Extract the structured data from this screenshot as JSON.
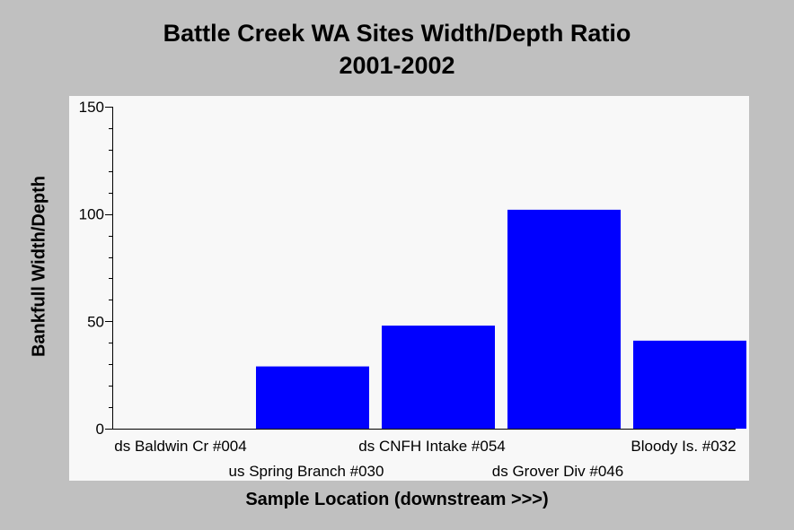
{
  "chart_data": {
    "type": "bar",
    "title_line_1": "Battle Creek WA Sites Width/Depth Ratio",
    "title_line_2": "2001-2002",
    "xlabel": "Sample Location (downstream >>>)",
    "ylabel": "Bankfull Width/Depth",
    "categories": [
      "ds Baldwin Cr #004",
      "us Spring Branch #030",
      "ds CNFH Intake #054",
      "ds Grover Div #046",
      "Bloody Is. #032"
    ],
    "values": [
      0,
      29,
      48,
      102,
      41
    ],
    "ylim": [
      0,
      150
    ],
    "yticks": [
      0,
      50,
      100,
      150
    ],
    "bar_color": "#0000ff",
    "plot_background": "#f8f8f8",
    "page_background": "#c0c0c0",
    "grid": false,
    "legend": "none"
  }
}
